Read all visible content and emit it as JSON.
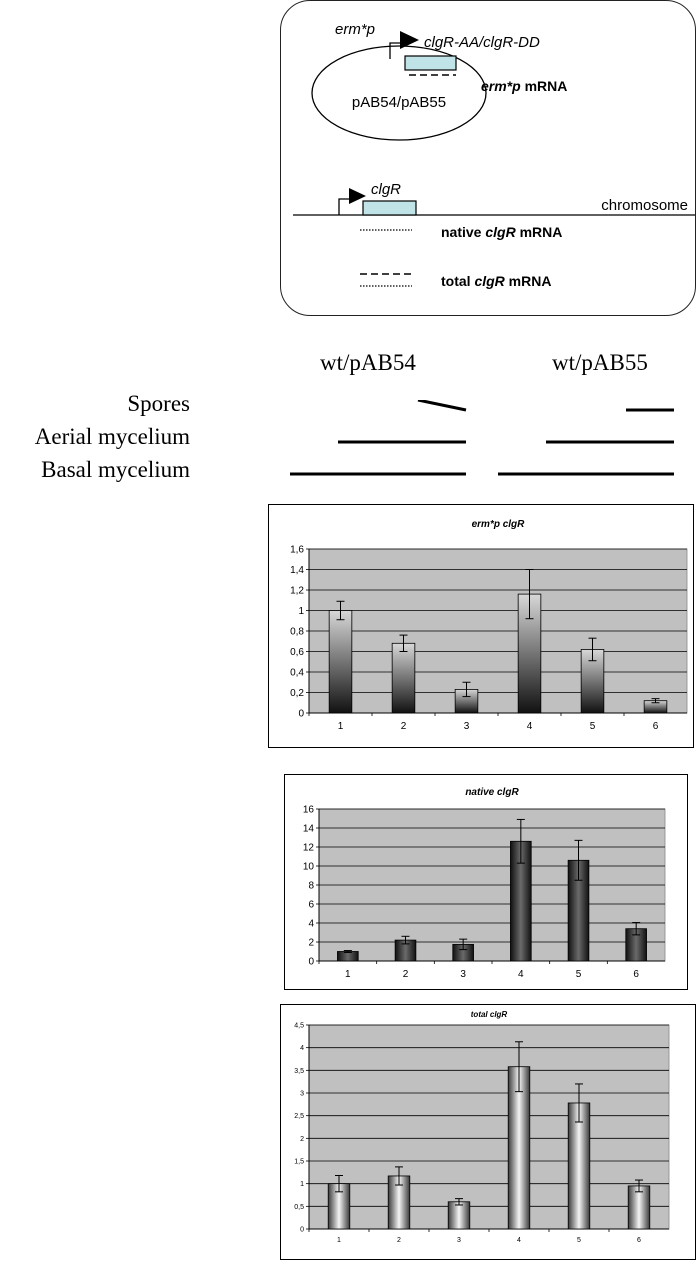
{
  "diagram": {
    "promoter_plasmid": "erm*p",
    "gene_plasmid": "clgR-AA/clgR-DD",
    "plasmid_name": "pAB54/pAB55",
    "mrna_plasmid_italic": "erm*p",
    "mrna_plasmid_suffix": " mRNA",
    "gene_chrom": "clgR",
    "chromosome": "chromosome",
    "native_prefix": "native ",
    "native_italic": "clgR",
    "native_suffix": " mRNA",
    "total_prefix": "total ",
    "total_italic": "clgR",
    "total_suffix": " mRNA"
  },
  "stages": {
    "strain_left": "wt/pAB54",
    "strain_right": "wt/pAB55",
    "labels": [
      "Spores",
      "Aerial mycelium",
      "Basal mycelium"
    ]
  },
  "colors": {
    "plot_bg": "#c0c0c0",
    "gene_box": "#bfe3e6",
    "bar_dark": "#111111",
    "bar_light": "#d8d8d8"
  },
  "chart_data": [
    {
      "type": "bar",
      "title": "erm*p clgR",
      "categories": [
        "1",
        "2",
        "3",
        "4",
        "5",
        "6"
      ],
      "values": [
        1.0,
        0.68,
        0.23,
        1.16,
        0.62,
        0.12
      ],
      "errors": [
        0.09,
        0.08,
        0.07,
        0.24,
        0.11,
        0.02
      ],
      "ylim": [
        0,
        1.6
      ],
      "yticks": [
        "0",
        "0,2",
        "0,4",
        "0,6",
        "0,8",
        "1",
        "1,2",
        "1,4",
        "1,6"
      ],
      "xlabel": "",
      "ylabel": "",
      "grid": true,
      "gradient": "vertical-dark-bottom"
    },
    {
      "type": "bar",
      "title": "native clgR",
      "categories": [
        "1",
        "2",
        "3",
        "4",
        "5",
        "6"
      ],
      "values": [
        1.0,
        2.2,
        1.75,
        12.6,
        10.6,
        3.4
      ],
      "errors": [
        0.1,
        0.4,
        0.55,
        2.3,
        2.1,
        0.65
      ],
      "ylim": [
        0,
        16
      ],
      "yticks": [
        "0",
        "2",
        "4",
        "6",
        "8",
        "10",
        "12",
        "14",
        "16"
      ],
      "xlabel": "",
      "ylabel": "",
      "grid": true,
      "gradient": "horizontal-dark-sides"
    },
    {
      "type": "bar",
      "title": "total clgR",
      "categories": [
        "1",
        "2",
        "3",
        "4",
        "5",
        "6"
      ],
      "values": [
        1.0,
        1.17,
        0.6,
        3.58,
        2.78,
        0.95
      ],
      "errors": [
        0.18,
        0.2,
        0.07,
        0.55,
        0.42,
        0.13
      ],
      "ylim": [
        0,
        4.5
      ],
      "yticks": [
        "0",
        "0,5",
        "1",
        "1,5",
        "2",
        "2,5",
        "3",
        "3,5",
        "4",
        "4,5"
      ],
      "xlabel": "",
      "ylabel": "",
      "grid": true,
      "gradient": "horizontal-light-center"
    }
  ]
}
